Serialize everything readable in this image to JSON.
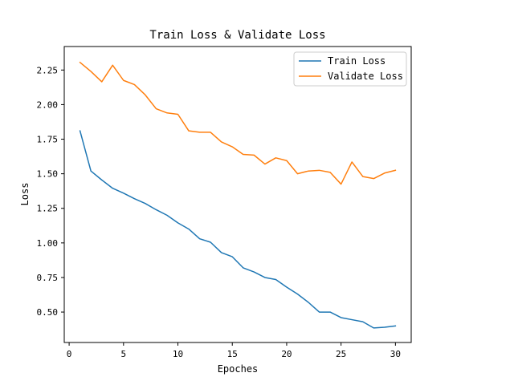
{
  "chart_data": {
    "type": "line",
    "title": "Train Loss & Validate Loss",
    "xlabel": "Epoches",
    "ylabel": "Loss",
    "xlim": [
      -0.45,
      31.45
    ],
    "ylim": [
      0.28,
      2.42
    ],
    "xticks": [
      0,
      5,
      10,
      15,
      20,
      25,
      30
    ],
    "yticks": [
      0.5,
      0.75,
      1.0,
      1.25,
      1.5,
      1.75,
      2.0,
      2.25
    ],
    "ytick_labels": [
      "0.50",
      "0.75",
      "1.00",
      "1.25",
      "1.50",
      "1.75",
      "2.00",
      "2.25"
    ],
    "grid": false,
    "legend_position": "top-right",
    "x": [
      1,
      2,
      3,
      4,
      5,
      6,
      7,
      8,
      9,
      10,
      11,
      12,
      13,
      14,
      15,
      16,
      17,
      18,
      19,
      20,
      21,
      22,
      23,
      24,
      25,
      26,
      27,
      28,
      29,
      30
    ],
    "series": [
      {
        "name": "Train Loss",
        "color": "#1f77b4",
        "values": [
          1.81,
          1.52,
          1.455,
          1.395,
          1.36,
          1.32,
          1.285,
          1.24,
          1.2,
          1.145,
          1.1,
          1.03,
          1.005,
          0.93,
          0.9,
          0.82,
          0.79,
          0.75,
          0.735,
          0.68,
          0.63,
          0.57,
          0.5,
          0.5,
          0.46,
          0.445,
          0.43,
          0.385,
          0.39,
          0.4
        ]
      },
      {
        "name": "Validate Loss",
        "color": "#ff7f0e",
        "values": [
          2.305,
          2.24,
          2.165,
          2.285,
          2.175,
          2.145,
          2.07,
          1.97,
          1.94,
          1.93,
          1.81,
          1.8,
          1.8,
          1.73,
          1.695,
          1.64,
          1.635,
          1.57,
          1.615,
          1.595,
          1.5,
          1.52,
          1.525,
          1.51,
          1.425,
          1.585,
          1.48,
          1.465,
          1.505,
          1.525
        ]
      }
    ]
  }
}
